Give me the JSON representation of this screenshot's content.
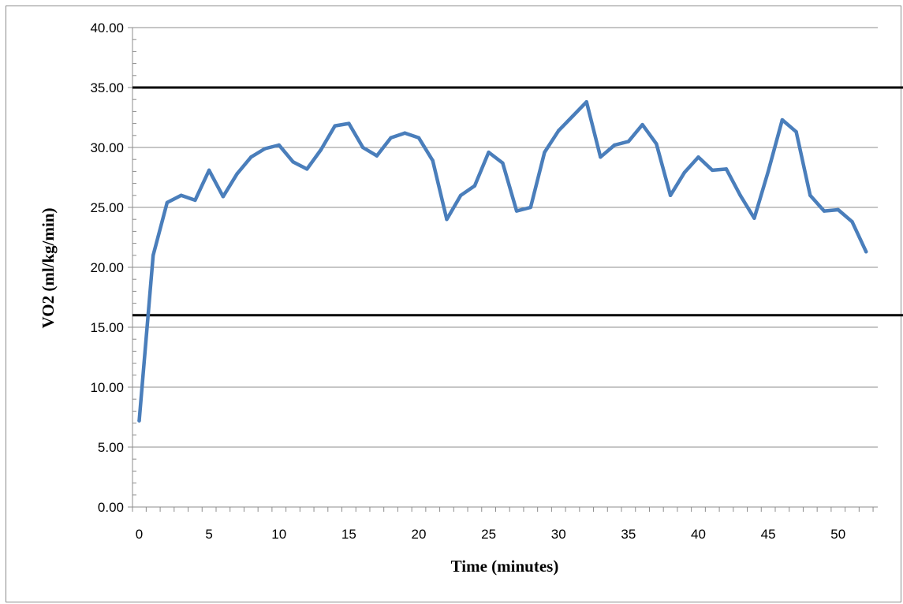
{
  "chart_data": {
    "type": "line",
    "title": "",
    "xlabel": "Time (minutes)",
    "ylabel": "VO2 (ml/kg/min)",
    "xlim": [
      0,
      52
    ],
    "ylim": [
      0,
      40
    ],
    "x_ticks": [
      "0",
      "5",
      "10",
      "15",
      "20",
      "25",
      "30",
      "35",
      "40",
      "45",
      "50"
    ],
    "x_tick_values": [
      0,
      5,
      10,
      15,
      20,
      25,
      30,
      35,
      40,
      45,
      50
    ],
    "y_ticks": [
      "0.00",
      "5.00",
      "10.00",
      "15.00",
      "20.00",
      "25.00",
      "30.00",
      "35.00",
      "40.00"
    ],
    "y_tick_values": [
      0,
      5,
      10,
      15,
      20,
      25,
      30,
      35,
      40
    ],
    "grid": true,
    "legend": "none",
    "series": [
      {
        "color": "#4a7ebb",
        "x": [
          0,
          1,
          2,
          3,
          4,
          5,
          6,
          7,
          8,
          9,
          10,
          11,
          12,
          13,
          14,
          15,
          16,
          17,
          18,
          19,
          20,
          21,
          22,
          23,
          24,
          25,
          26,
          27,
          28,
          29,
          30,
          31,
          32,
          33,
          34,
          35,
          36,
          37,
          38,
          39,
          40,
          41,
          42,
          43,
          44,
          45,
          46,
          47,
          48,
          49,
          50,
          51,
          52
        ],
        "values": [
          7.2,
          21.0,
          25.4,
          26.0,
          25.6,
          28.1,
          25.9,
          27.8,
          29.2,
          29.9,
          30.2,
          28.8,
          28.2,
          29.8,
          31.8,
          32.0,
          30.0,
          29.3,
          30.8,
          31.2,
          30.8,
          28.9,
          24.0,
          26.0,
          26.8,
          29.6,
          28.7,
          24.7,
          25.0,
          29.6,
          31.4,
          32.6,
          33.8,
          29.2,
          30.2,
          30.5,
          31.9,
          30.3,
          26.0,
          27.9,
          29.2,
          28.1,
          28.2,
          26.0,
          24.1,
          28.0,
          32.3,
          31.3,
          26.0,
          24.7,
          24.8,
          23.8,
          21.3
        ]
      }
    ],
    "reference_lines": [
      {
        "y": 35.0,
        "color": "#000000"
      },
      {
        "y": 16.0,
        "color": "#000000"
      }
    ]
  }
}
